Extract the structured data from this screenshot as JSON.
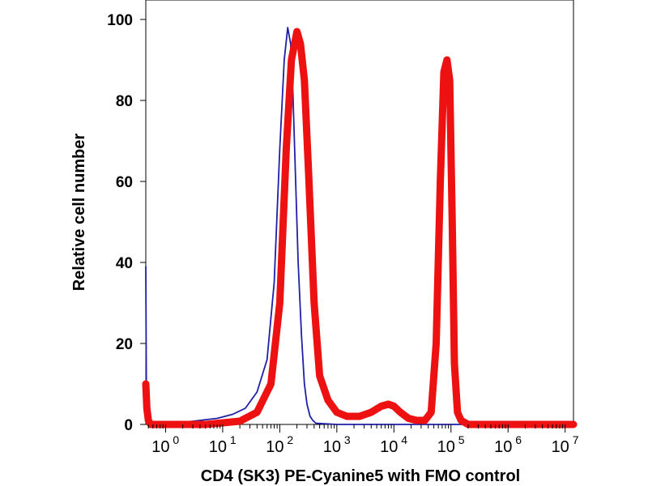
{
  "chart_data": {
    "type": "line",
    "title": "",
    "xlabel": "CD4 (SK3) PE-Cyanine5 with FMO control",
    "ylabel": "Relative cell number",
    "x_scale": "log",
    "xlim": [
      0.45,
      14000000
    ],
    "ylim": [
      0,
      100
    ],
    "grid": false,
    "legend": "none",
    "y_ticks": [
      0,
      20,
      40,
      60,
      80,
      100
    ],
    "y_tick_labels": [
      "0",
      "20",
      "40",
      "60",
      "80",
      "100"
    ],
    "x_ticks": [
      1,
      10,
      100,
      1000,
      10000,
      100000,
      1000000,
      10000000
    ],
    "x_tick_labels": [
      {
        "base": "10",
        "exp": "0"
      },
      {
        "base": "10",
        "exp": "1"
      },
      {
        "base": "10",
        "exp": "2"
      },
      {
        "base": "10",
        "exp": "3"
      },
      {
        "base": "10",
        "exp": "4"
      },
      {
        "base": "10",
        "exp": "5"
      },
      {
        "base": "10",
        "exp": "6"
      },
      {
        "base": "10",
        "exp": "7"
      }
    ],
    "series": [
      {
        "name": "FMO control",
        "color": "#1f1fa8",
        "x": [
          0.45,
          0.46,
          0.47,
          0.5,
          0.6,
          1,
          3,
          8,
          15,
          25,
          40,
          60,
          80,
          100,
          120,
          138,
          155,
          170,
          190,
          210,
          240,
          270,
          300,
          340,
          380,
          430,
          1000,
          10000,
          100000,
          14000000
        ],
        "y": [
          39,
          8,
          2,
          0,
          0,
          0.2,
          0.8,
          1.5,
          2.5,
          4,
          8,
          16,
          35,
          68,
          90,
          98,
          94,
          82,
          60,
          40,
          22,
          10,
          5,
          2,
          1,
          0.3,
          0,
          0,
          0,
          0
        ]
      },
      {
        "name": "CD4 (SK3) PE-Cyanine5",
        "color": "#ee1111",
        "x": [
          0.45,
          0.47,
          0.5,
          0.55,
          0.6,
          1,
          5,
          20,
          40,
          70,
          100,
          130,
          160,
          200,
          230,
          270,
          320,
          400,
          500,
          700,
          1000,
          1500,
          2500,
          4000,
          6000,
          8000,
          10000,
          13000,
          18000,
          25000,
          35000,
          45000,
          55000,
          65000,
          75000,
          85000,
          95000,
          105000,
          115000,
          130000,
          150000,
          200000,
          500000,
          14000000
        ],
        "y": [
          10,
          4,
          1,
          0,
          0,
          0,
          0,
          0.8,
          3,
          10,
          30,
          68,
          90,
          97,
          94,
          85,
          62,
          30,
          12,
          6,
          3,
          2,
          2,
          3,
          4.5,
          5,
          4.5,
          3,
          1.5,
          1,
          1,
          3,
          20,
          60,
          87,
          90,
          85,
          50,
          15,
          3,
          1,
          0,
          0,
          0
        ]
      }
    ]
  }
}
